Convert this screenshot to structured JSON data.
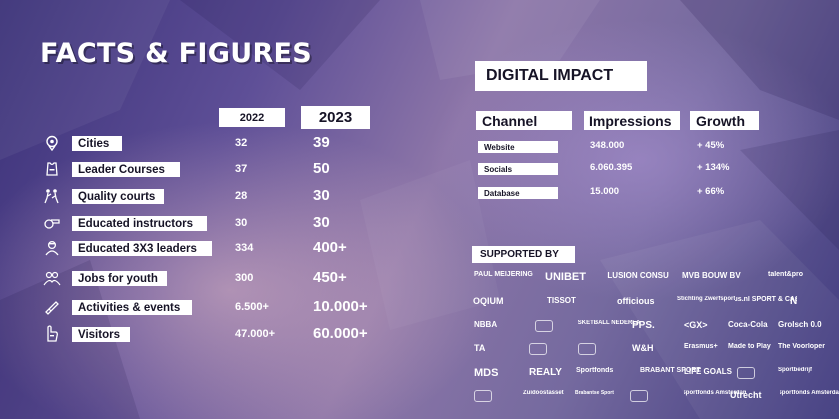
{
  "title": "FACTS & FIGURES",
  "years": {
    "y2022": "2022",
    "y2023": "2023"
  },
  "facts": [
    {
      "label": "Cities",
      "icon": "map-pin-icon",
      "v2022": "32",
      "v2023": "39"
    },
    {
      "label": "Leader Courses",
      "icon": "jersey-icon",
      "v2022": "37",
      "v2023": "50"
    },
    {
      "label": "Quality courts",
      "icon": "players-icon",
      "v2022": "28",
      "v2023": "30"
    },
    {
      "label": "Educated instructors",
      "icon": "whistle-icon",
      "v2022": "30",
      "v2023": "30"
    },
    {
      "label": "Educated 3X3 leaders",
      "icon": "leader-icon",
      "v2022": "334",
      "v2023": "400+"
    },
    {
      "label": "Jobs for youth",
      "icon": "youth-icon",
      "v2022": "300",
      "v2023": "450+"
    },
    {
      "label": "Activities & events",
      "icon": "ticket-icon",
      "v2022": "6.500+",
      "v2023": "10.000+"
    },
    {
      "label": "Visitors",
      "icon": "foam-hand-icon",
      "v2022": "47.000+",
      "v2023": "60.000+"
    }
  ],
  "digital": {
    "title": "DIGITAL IMPACT",
    "headers": {
      "channel": "Channel",
      "impressions": "Impressions",
      "growth": "Growth"
    },
    "rows": [
      {
        "channel": "Website",
        "impressions": "348.000",
        "growth": "+ 45%"
      },
      {
        "channel": "Socials",
        "impressions": "6.060.395",
        "growth": "+ 134%"
      },
      {
        "channel": "Database",
        "impressions": "15.000",
        "growth": "+ 66%"
      }
    ]
  },
  "supported_by": {
    "title": "SUPPORTED BY",
    "logos": [
      "PAUL MEIJERING",
      "UNIBET",
      "CONCLUSION CONSULTING",
      "MVB BOUW BV",
      "talent&pro",
      "OQIUM",
      "TISSOT",
      "officious",
      "Stichting Zwerfsport",
      "Circus.nl SPORT & CASINO",
      "N",
      "NBBA",
      "",
      "BASKETBALL NEDERLAND",
      "PPS.",
      "<GX>",
      "Coca-Cola",
      "Grolsch 0.0",
      "TA",
      "",
      "",
      "W&H",
      "Erasmus+",
      "Made to Play",
      "The Voorloper",
      "MDS",
      "REALY",
      "Sportfonds",
      "BRABANT SPORT",
      "LIFE GOALS",
      "",
      "Sportbedrijf",
      "",
      "Zuidoostasset",
      "Brabantse Sport",
      "",
      "Sportfonds Amsterdam",
      "Utrecht",
      "Sportfonds Amsterdam"
    ]
  },
  "colors": {
    "highlight": "#ffffff",
    "text_dark": "#161326",
    "bg_dark": "#3b3178",
    "bg_light": "#8d76a8"
  }
}
